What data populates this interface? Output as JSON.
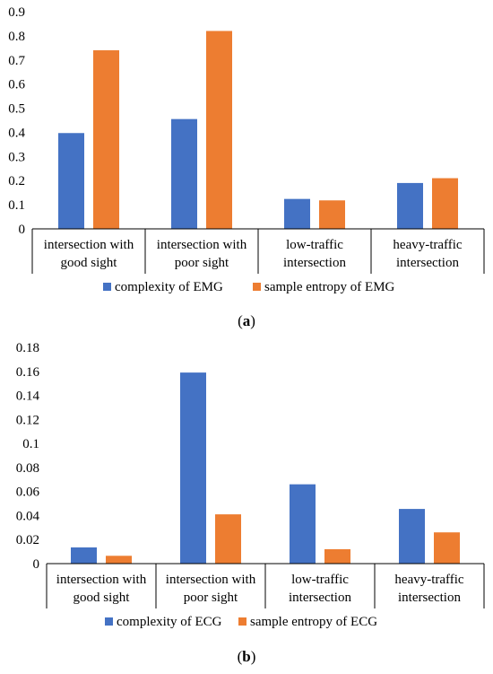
{
  "colors": {
    "series1": "#4472C4",
    "series2": "#ED7D31",
    "axis": "#000000"
  },
  "chart_data": [
    {
      "type": "bar",
      "panel_label": "(a)",
      "categories": [
        [
          "intersection with",
          "good sight"
        ],
        [
          "intersection with",
          "poor sight"
        ],
        [
          "low-traffic",
          "intersection"
        ],
        [
          "heavy-traffic",
          "intersection"
        ]
      ],
      "series": [
        {
          "name": "complexity of EMG",
          "values": [
            0.397,
            0.455,
            0.124,
            0.19
          ]
        },
        {
          "name": "sample entropy of EMG",
          "values": [
            0.74,
            0.82,
            0.118,
            0.21
          ]
        }
      ],
      "yticks": [
        "0",
        "0.1",
        "0.2",
        "0.3",
        "0.4",
        "0.5",
        "0.6",
        "0.7",
        "0.8",
        "0.9"
      ],
      "ylim": [
        0,
        0.9
      ],
      "grid": false,
      "legend_position": "bottom"
    },
    {
      "type": "bar",
      "panel_label": "(b)",
      "categories": [
        [
          "intersection with",
          "good sight"
        ],
        [
          "intersection with",
          "poor sight"
        ],
        [
          "low-traffic",
          "intersection"
        ],
        [
          "heavy-traffic",
          "intersection"
        ]
      ],
      "series": [
        {
          "name": "complexity of ECG",
          "values": [
            0.0135,
            0.159,
            0.066,
            0.0455
          ]
        },
        {
          "name": "sample entropy of ECG",
          "values": [
            0.0065,
            0.041,
            0.012,
            0.026
          ]
        }
      ],
      "yticks": [
        "0",
        "0.02",
        "0.04",
        "0.06",
        "0.08",
        "0.1",
        "0.12",
        "0.14",
        "0.16",
        "0.18"
      ],
      "ylim": [
        0,
        0.18
      ],
      "grid": false,
      "legend_position": "bottom"
    }
  ]
}
